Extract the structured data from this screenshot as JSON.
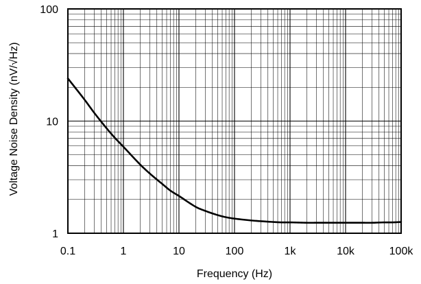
{
  "chart_data": {
    "type": "line",
    "title": "",
    "xlabel": "Frequency (Hz)",
    "ylabel": "Voltage Noise Density (nV/√Hz)",
    "x_scale": "log",
    "y_scale": "log",
    "xlim": [
      0.1,
      100000
    ],
    "ylim": [
      1,
      100
    ],
    "grid": true,
    "x_ticks": [
      {
        "value": 0.1,
        "label": "0.1"
      },
      {
        "value": 1,
        "label": "1"
      },
      {
        "value": 10,
        "label": "10"
      },
      {
        "value": 100,
        "label": "100"
      },
      {
        "value": 1000,
        "label": "1k"
      },
      {
        "value": 10000,
        "label": "10k"
      },
      {
        "value": 100000,
        "label": "100k"
      }
    ],
    "y_ticks": [
      {
        "value": 1,
        "label": "1"
      },
      {
        "value": 10,
        "label": "10"
      },
      {
        "value": 100,
        "label": "100"
      }
    ],
    "series": [
      {
        "x": [
          0.1,
          0.2,
          0.3,
          0.5,
          0.7,
          1,
          2,
          3,
          5,
          7,
          10,
          20,
          30,
          50,
          70,
          100,
          200,
          300,
          500,
          700,
          1000,
          2000,
          3000,
          5000,
          7000,
          10000,
          20000,
          30000,
          50000,
          70000,
          100000
        ],
        "y": [
          24,
          15.5,
          11.8,
          8.6,
          7.1,
          5.9,
          4.1,
          3.4,
          2.75,
          2.4,
          2.15,
          1.72,
          1.58,
          1.45,
          1.39,
          1.35,
          1.3,
          1.28,
          1.26,
          1.25,
          1.25,
          1.24,
          1.24,
          1.24,
          1.24,
          1.24,
          1.24,
          1.24,
          1.25,
          1.25,
          1.26
        ]
      }
    ]
  }
}
